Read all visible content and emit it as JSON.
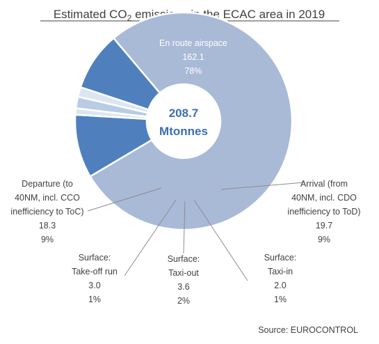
{
  "chart_data": {
    "type": "pie",
    "title_prefix": "Estimated CO",
    "title_sub": "2",
    "title_suffix": " emissions in the ECAC area in 2019",
    "center_value": "208.7",
    "center_unit": "Mtonnes",
    "source": "Source:  EUROCONTROL",
    "slices": [
      {
        "name": "En route airspace",
        "label_lines": [
          "En route airspace"
        ],
        "value": 162.1,
        "value_label": "162.1",
        "percent": "78%",
        "color": "#a9bad7"
      },
      {
        "name": "Arrival",
        "label_lines": [
          "Arrival (from",
          "40NM, incl. CDO",
          "inefficiency to ToD)"
        ],
        "value": 19.7,
        "value_label": "19.7",
        "percent": "9%",
        "color": "#4f80bd"
      },
      {
        "name": "Surface: Taxi-in",
        "label_lines": [
          "Surface:",
          "Taxi-in"
        ],
        "value": 2.0,
        "value_label": "2.0",
        "percent": "1%",
        "color": "#dce6f2"
      },
      {
        "name": "Surface: Taxi-out",
        "label_lines": [
          "Surface:",
          "Taxi-out"
        ],
        "value": 3.6,
        "value_label": "3.6",
        "percent": "2%",
        "color": "#b8cce4"
      },
      {
        "name": "Surface: Take-off run",
        "label_lines": [
          "Surface:",
          "Take-off run"
        ],
        "value": 3.0,
        "value_label": "3.0",
        "percent": "1%",
        "color": "#dce6f2"
      },
      {
        "name": "Departure",
        "label_lines": [
          "Departure (to",
          "40NM, incl. CCO",
          "inefficiency to ToC)"
        ],
        "value": 18.3,
        "value_label": "18.3",
        "percent": "9%",
        "color": "#4f80bd"
      }
    ]
  }
}
